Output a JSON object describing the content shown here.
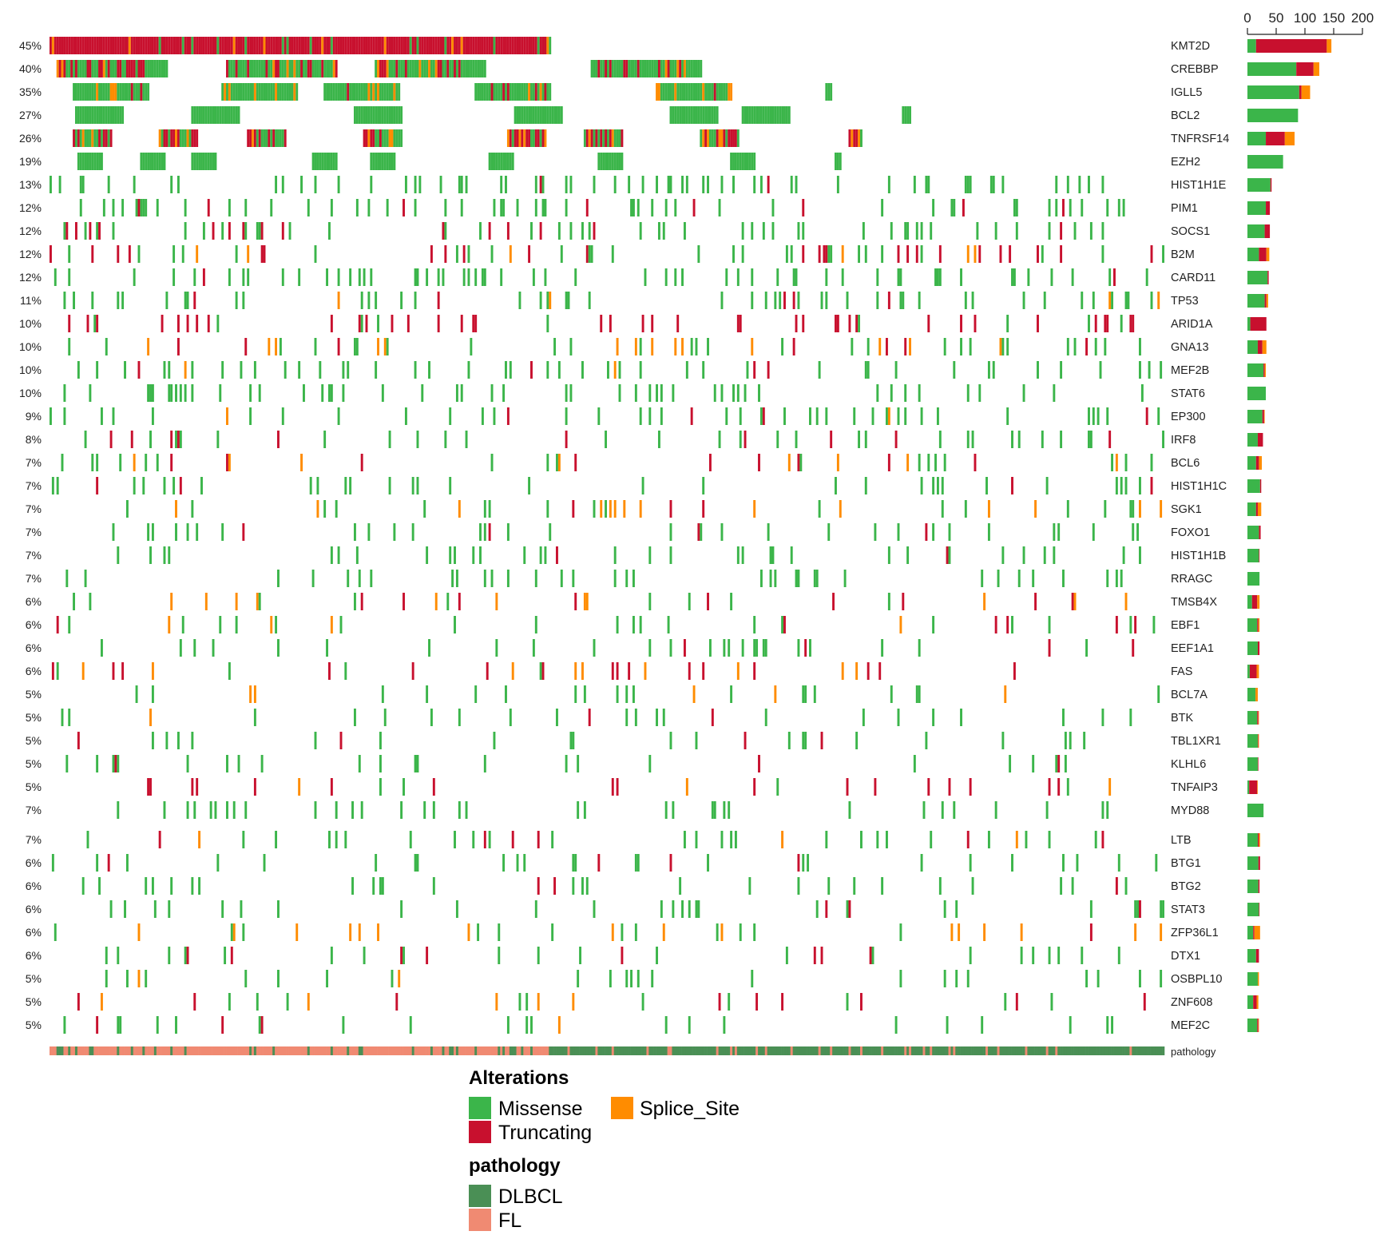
{
  "chart_data": {
    "type": "heatmap",
    "colors": {
      "Missense": "#3BB54A",
      "Truncating": "#C8102E",
      "Splice_Site": "#FF8C00",
      "DLBCL": "#4A8F55",
      "FL": "#F08A72"
    },
    "genes": [
      {
        "name": "KMT2D",
        "pct": "45%",
        "freq": 0.45,
        "counts": [
          15,
          123,
          8
        ]
      },
      {
        "name": "CREBBP",
        "pct": "40%",
        "freq": 0.4,
        "counts": [
          85,
          30,
          10
        ]
      },
      {
        "name": "IGLL5",
        "pct": "35%",
        "freq": 0.35,
        "counts": [
          90,
          4,
          15
        ]
      },
      {
        "name": "BCL2",
        "pct": "27%",
        "freq": 0.27,
        "counts": [
          88,
          0,
          0
        ]
      },
      {
        "name": "TNFRSF14",
        "pct": "26%",
        "freq": 0.26,
        "counts": [
          32,
          33,
          17
        ]
      },
      {
        "name": "EZH2",
        "pct": "19%",
        "freq": 0.19,
        "counts": [
          62,
          0,
          0
        ]
      },
      {
        "name": "HIST1H1E",
        "pct": "13%",
        "freq": 0.13,
        "counts": [
          40,
          2,
          0
        ]
      },
      {
        "name": "PIM1",
        "pct": "12%",
        "freq": 0.12,
        "counts": [
          32,
          7,
          0
        ]
      },
      {
        "name": "SOCS1",
        "pct": "12%",
        "freq": 0.12,
        "counts": [
          30,
          9,
          0
        ]
      },
      {
        "name": "B2M",
        "pct": "12%",
        "freq": 0.12,
        "counts": [
          20,
          13,
          5
        ]
      },
      {
        "name": "CARD11",
        "pct": "12%",
        "freq": 0.12,
        "counts": [
          35,
          2,
          0
        ]
      },
      {
        "name": "TP53",
        "pct": "11%",
        "freq": 0.11,
        "counts": [
          30,
          3,
          3
        ]
      },
      {
        "name": "ARID1A",
        "pct": "10%",
        "freq": 0.1,
        "counts": [
          5,
          28,
          0
        ]
      },
      {
        "name": "GNA13",
        "pct": "10%",
        "freq": 0.1,
        "counts": [
          18,
          8,
          7
        ]
      },
      {
        "name": "MEF2B",
        "pct": "10%",
        "freq": 0.1,
        "counts": [
          28,
          2,
          2
        ]
      },
      {
        "name": "STAT6",
        "pct": "10%",
        "freq": 0.1,
        "counts": [
          32,
          0,
          0
        ]
      },
      {
        "name": "EP300",
        "pct": "9%",
        "freq": 0.09,
        "counts": [
          26,
          3,
          1
        ]
      },
      {
        "name": "IRF8",
        "pct": "8%",
        "freq": 0.08,
        "counts": [
          18,
          9,
          0
        ]
      },
      {
        "name": "BCL6",
        "pct": "7%",
        "freq": 0.07,
        "counts": [
          15,
          5,
          5
        ]
      },
      {
        "name": "HIST1H1C",
        "pct": "7%",
        "freq": 0.07,
        "counts": [
          22,
          2,
          0
        ]
      },
      {
        "name": "SGK1",
        "pct": "7%",
        "freq": 0.07,
        "counts": [
          15,
          3,
          6
        ]
      },
      {
        "name": "FOXO1",
        "pct": "7%",
        "freq": 0.07,
        "counts": [
          20,
          3,
          0
        ]
      },
      {
        "name": "HIST1H1B",
        "pct": "7%",
        "freq": 0.07,
        "counts": [
          20,
          1,
          0
        ]
      },
      {
        "name": "RRAGC",
        "pct": "7%",
        "freq": 0.07,
        "counts": [
          21,
          0,
          0
        ]
      },
      {
        "name": "TMSB4X",
        "pct": "6%",
        "freq": 0.06,
        "counts": [
          8,
          9,
          4
        ]
      },
      {
        "name": "EBF1",
        "pct": "6%",
        "freq": 0.06,
        "counts": [
          17,
          2,
          2
        ]
      },
      {
        "name": "EEF1A1",
        "pct": "6%",
        "freq": 0.06,
        "counts": [
          18,
          3,
          0
        ]
      },
      {
        "name": "FAS",
        "pct": "6%",
        "freq": 0.06,
        "counts": [
          4,
          12,
          4
        ]
      },
      {
        "name": "BCL7A",
        "pct": "5%",
        "freq": 0.05,
        "counts": [
          14,
          0,
          4
        ]
      },
      {
        "name": "BTK",
        "pct": "5%",
        "freq": 0.05,
        "counts": [
          17,
          2,
          1
        ]
      },
      {
        "name": "TBL1XR1",
        "pct": "5%",
        "freq": 0.05,
        "counts": [
          18,
          1,
          1
        ]
      },
      {
        "name": "KLHL6",
        "pct": "5%",
        "freq": 0.05,
        "counts": [
          18,
          1,
          0
        ]
      },
      {
        "name": "TNFAIP3",
        "pct": "5%",
        "freq": 0.05,
        "counts": [
          3,
          14,
          1
        ]
      },
      {
        "name": "MYD88",
        "pct": "7%",
        "freq": 0.07,
        "counts": [
          28,
          0,
          0
        ]
      },
      {
        "name": "LTB",
        "pct": "7%",
        "freq": 0.07,
        "counts": [
          18,
          2,
          2
        ]
      },
      {
        "name": "BTG1",
        "pct": "6%",
        "freq": 0.06,
        "counts": [
          19,
          3,
          0
        ]
      },
      {
        "name": "BTG2",
        "pct": "6%",
        "freq": 0.06,
        "counts": [
          19,
          2,
          0
        ]
      },
      {
        "name": "STAT3",
        "pct": "6%",
        "freq": 0.06,
        "counts": [
          20,
          1,
          0
        ]
      },
      {
        "name": "ZFP36L1",
        "pct": "6%",
        "freq": 0.06,
        "counts": [
          10,
          2,
          10
        ]
      },
      {
        "name": "DTX1",
        "pct": "6%",
        "freq": 0.06,
        "counts": [
          15,
          5,
          0
        ]
      },
      {
        "name": "OSBPL10",
        "pct": "5%",
        "freq": 0.05,
        "counts": [
          18,
          0,
          2
        ]
      },
      {
        "name": "ZNF608",
        "pct": "5%",
        "freq": 0.05,
        "counts": [
          10,
          6,
          3
        ]
      },
      {
        "name": "MEF2C",
        "pct": "5%",
        "freq": 0.05,
        "counts": [
          17,
          2,
          1
        ]
      }
    ],
    "bar_axis": {
      "ticks": [
        0,
        50,
        100,
        150,
        200
      ],
      "max": 200
    },
    "pathology_label": "pathology",
    "legend": {
      "alterations_title": "Alterations",
      "alterations": [
        "Missense",
        "Splice_Site",
        "Truncating"
      ],
      "pathology_title": "pathology",
      "pathology": [
        "DLBCL",
        "FL"
      ]
    }
  }
}
